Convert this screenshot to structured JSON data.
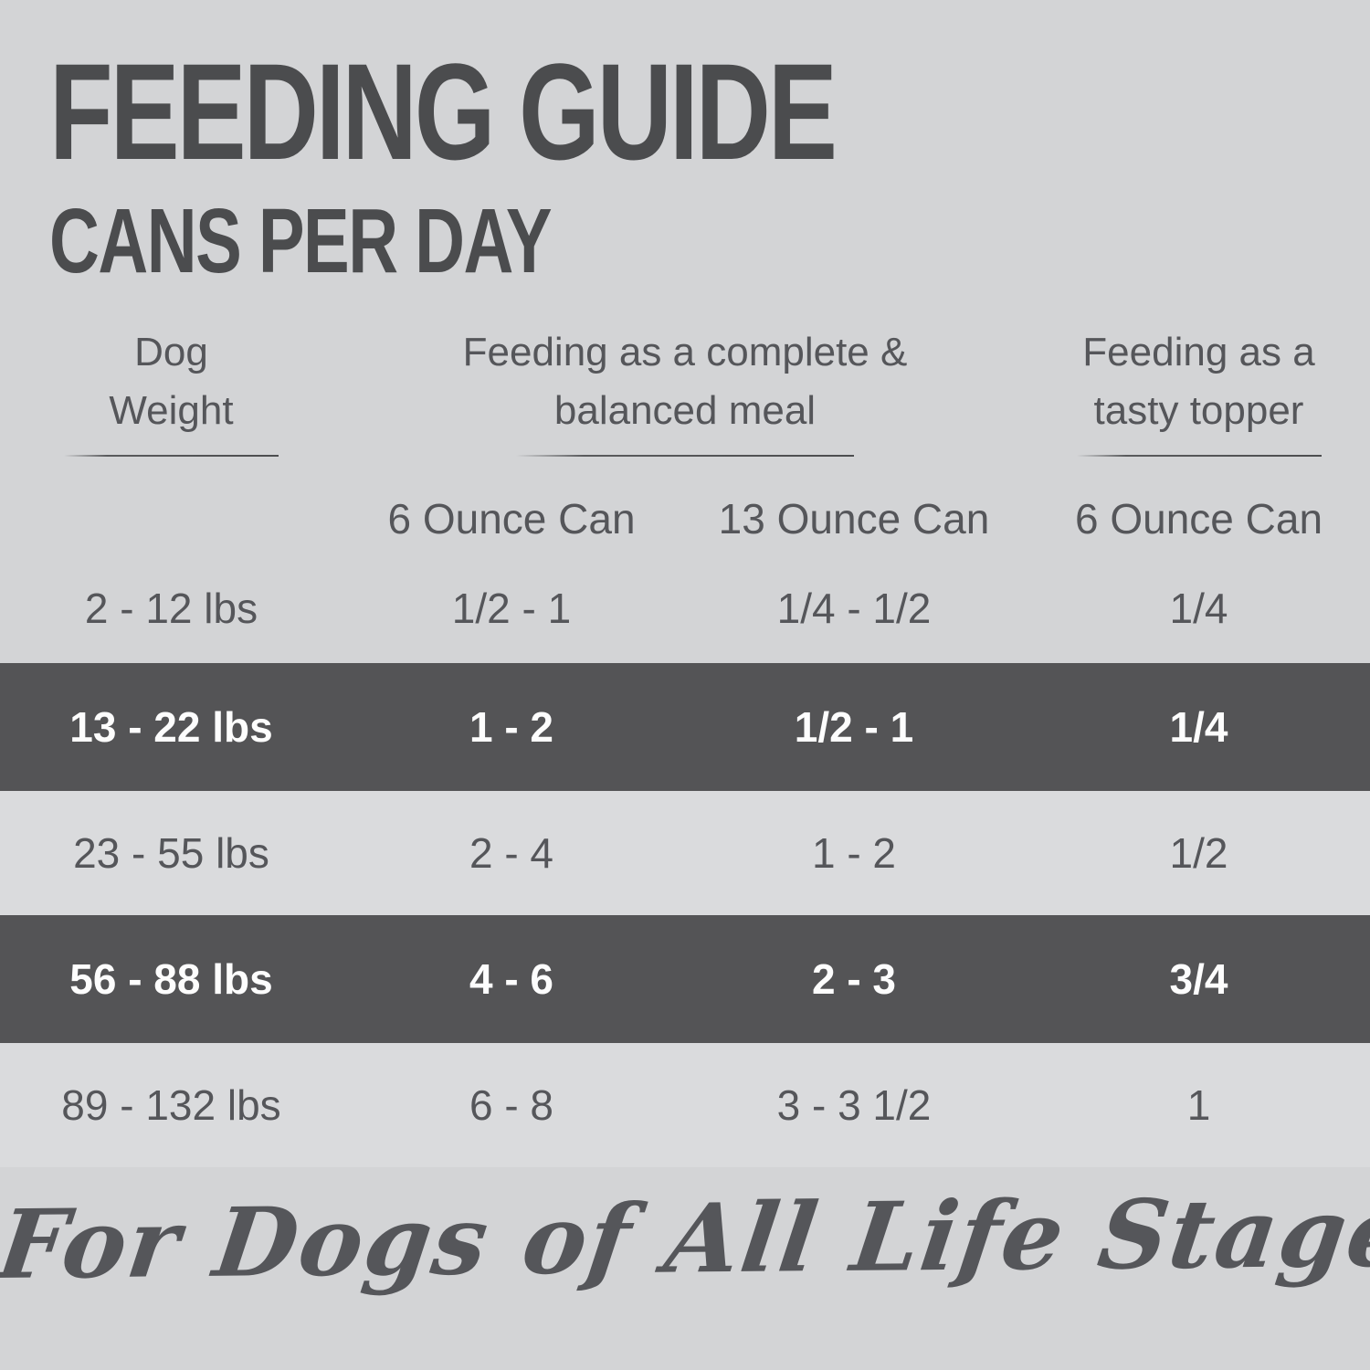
{
  "theme": {
    "page_bg": "#d3d4d6",
    "light_row_bg": "#dadbdd",
    "dark_row_bg": "#545456",
    "heading_color": "#4b4c4e",
    "text_color": "#55565a",
    "inverse_text_color": "#fdfdfd"
  },
  "header": {
    "title": "FEEDING GUIDE",
    "subtitle": "CANS PER DAY"
  },
  "table": {
    "group_headers": [
      {
        "label": "Dog Weight",
        "lines": [
          "Dog",
          "Weight"
        ]
      },
      {
        "label": "Feeding as a complete & balanced meal",
        "lines": [
          "Feeding as a complete &",
          "balanced meal"
        ]
      },
      {
        "label": "Feeding as a tasty topper",
        "lines": [
          "Feeding as a",
          "tasty topper"
        ]
      }
    ],
    "sub_headers": [
      "",
      "6 Ounce Can",
      "13 Ounce Can",
      "6 Ounce Can"
    ],
    "rows": [
      {
        "weight": "2 - 12 lbs",
        "complete_6oz": "1/2 - 1",
        "complete_13oz": "1/4 - 1/2",
        "topper_6oz": "1/4",
        "highlighted": false
      },
      {
        "weight": "13 - 22 lbs",
        "complete_6oz": "1 - 2",
        "complete_13oz": "1/2 - 1",
        "topper_6oz": "1/4",
        "highlighted": true
      },
      {
        "weight": "23 - 55 lbs",
        "complete_6oz": "2 - 4",
        "complete_13oz": "1 - 2",
        "topper_6oz": "1/2",
        "highlighted": false
      },
      {
        "weight": "56 - 88 lbs",
        "complete_6oz": "4 - 6",
        "complete_13oz": "2 - 3",
        "topper_6oz": "3/4",
        "highlighted": true
      },
      {
        "weight": "89 - 132 lbs",
        "complete_6oz": "6 - 8",
        "complete_13oz": "3 - 3 1/2",
        "topper_6oz": "1",
        "highlighted": false
      }
    ]
  },
  "footer": {
    "tagline": "For Dogs of All Life Stages"
  },
  "chart_data": {
    "type": "table",
    "title": "FEEDING GUIDE",
    "subtitle": "CANS PER DAY",
    "columns": [
      "Dog Weight",
      "Feeding as a complete & balanced meal — 6 Ounce Can",
      "Feeding as a complete & balanced meal — 13 Ounce Can",
      "Feeding as a tasty topper — 6 Ounce Can"
    ],
    "rows": [
      [
        "2 - 12 lbs",
        "1/2 - 1",
        "1/4 - 1/2",
        "1/4"
      ],
      [
        "13 - 22 lbs",
        "1 - 2",
        "1/2 - 1",
        "1/4"
      ],
      [
        "23 - 55 lbs",
        "2 - 4",
        "1 - 2",
        "1/2"
      ],
      [
        "56 - 88 lbs",
        "4 - 6",
        "2 - 3",
        "3/4"
      ],
      [
        "89 - 132 lbs",
        "6 - 8",
        "3 - 3 1/2",
        "1"
      ]
    ],
    "highlighted_row_indices": [
      1,
      3
    ],
    "footnote": "For Dogs of All Life Stages"
  }
}
